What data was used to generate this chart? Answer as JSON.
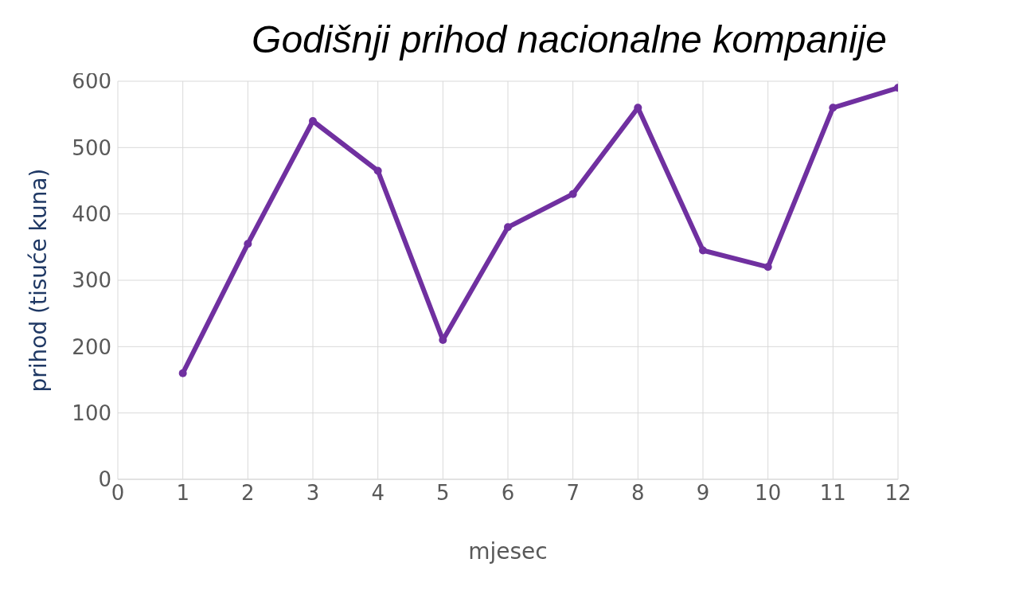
{
  "chart_data": {
    "type": "line",
    "title": "Godišnji prihod nacionalne kompanije",
    "xlabel": "mjesec",
    "ylabel": "prihod (tisuće kuna)",
    "x": [
      1,
      2,
      3,
      4,
      5,
      6,
      7,
      8,
      9,
      10,
      11,
      12
    ],
    "series": [
      {
        "color": "#7030a0",
        "values": [
          160,
          355,
          540,
          465,
          210,
          380,
          430,
          560,
          345,
          320,
          560,
          590
        ]
      }
    ],
    "xlim": [
      0,
      12
    ],
    "xticks": [
      0,
      1,
      2,
      3,
      4,
      5,
      6,
      7,
      8,
      9,
      10,
      11,
      12
    ],
    "ylim": [
      0,
      600
    ],
    "yticks": [
      0,
      100,
      200,
      300,
      400,
      500,
      600
    ],
    "grid": true,
    "marker": "circle",
    "line_style": "solid"
  }
}
